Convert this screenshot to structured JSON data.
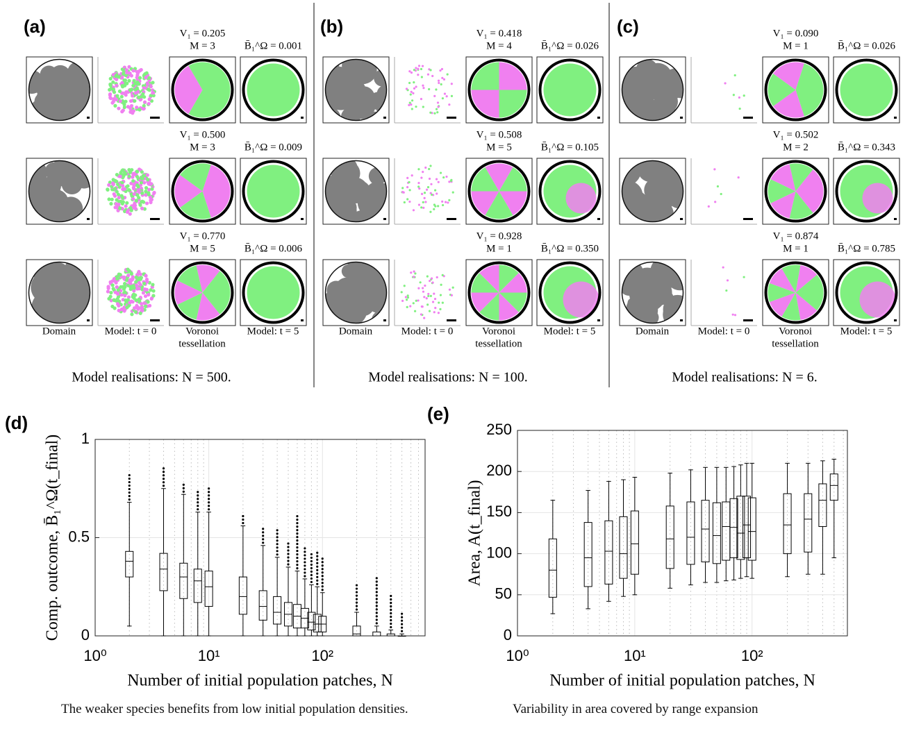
{
  "panels": [
    {
      "label": "(a)",
      "rows": [
        {
          "v": "V₁ = 0.205",
          "m": "M = 3",
          "b": "B̄₁^Ω = 0.001"
        },
        {
          "v": "V₁ = 0.500",
          "m": "M = 3",
          "b": "B̄₁^Ω = 0.009"
        },
        {
          "v": "V₁ = 0.770",
          "m": "M = 5",
          "b": "B̄₁^Ω = 0.006"
        }
      ],
      "captions": [
        "Domain",
        "Model: t = 0",
        "Voronoi",
        "tessellation",
        "Model: t = 5"
      ],
      "footer": "Model realisations: N = 500."
    },
    {
      "label": "(b)",
      "rows": [
        {
          "v": "V₁ = 0.418",
          "m": "M = 4",
          "b": "B̄₁^Ω = 0.026"
        },
        {
          "v": "V₁ = 0.508",
          "m": "M = 5",
          "b": "B̄₁^Ω = 0.105"
        },
        {
          "v": "V₁ = 0.928",
          "m": "M = 1",
          "b": "B̄₁^Ω = 0.350"
        }
      ],
      "captions": [
        "Domain",
        "Model: t = 0",
        "Voronoi",
        "tessellation",
        "Model: t = 5"
      ],
      "footer": "Model realisations: N = 100."
    },
    {
      "label": "(c)",
      "rows": [
        {
          "v": "V₁ = 0.090",
          "m": "M = 1",
          "b": "B̄₁^Ω = 0.026"
        },
        {
          "v": "V₁ = 0.502",
          "m": "M = 2",
          "b": "B̄₁^Ω = 0.343"
        },
        {
          "v": "V₁ = 0.874",
          "m": "M = 1",
          "b": "B̄₁^Ω = 0.785"
        }
      ],
      "captions": [
        "Domain",
        "Model: t = 0",
        "Voronoi",
        "tessellation",
        "Model: t = 5"
      ],
      "footer": "Model realisations: N = 6."
    }
  ],
  "chart_data": [
    {
      "type": "box",
      "panel_label": "(d)",
      "x_label": "Number of initial population patches, N",
      "y_label": "Comp. outcome, B̄₁^Ω(t_final)",
      "caption": "The weaker species benefits from low initial population densities.",
      "x": [
        2,
        4,
        6,
        8,
        10,
        20,
        30,
        40,
        50,
        60,
        70,
        80,
        90,
        100,
        200,
        300,
        400,
        500
      ],
      "whislo": [
        0.05,
        0,
        0,
        0,
        0,
        0,
        0,
        0,
        0,
        0,
        0,
        0,
        0,
        0,
        0,
        0,
        0,
        0
      ],
      "q1": [
        0.3,
        0.23,
        0.19,
        0.17,
        0.15,
        0.11,
        0.08,
        0.06,
        0.05,
        0.04,
        0.04,
        0.03,
        0.02,
        0.02,
        0,
        0,
        0,
        0
      ],
      "median": [
        0.38,
        0.34,
        0.3,
        0.28,
        0.25,
        0.2,
        0.15,
        0.12,
        0.11,
        0.1,
        0.09,
        0.07,
        0.06,
        0.06,
        0.01,
        0,
        0,
        0
      ],
      "q3": [
        0.43,
        0.42,
        0.37,
        0.34,
        0.33,
        0.3,
        0.23,
        0.2,
        0.17,
        0.16,
        0.14,
        0.12,
        0.11,
        0.1,
        0.05,
        0.02,
        0.01,
        0
      ],
      "whishi": [
        0.68,
        0.75,
        0.72,
        0.63,
        0.63,
        0.56,
        0.46,
        0.4,
        0.35,
        0.33,
        0.29,
        0.26,
        0.25,
        0.22,
        0.12,
        0.05,
        0.03,
        0.01
      ],
      "outlier_max": [
        0.82,
        0.87,
        0.78,
        0.74,
        0.76,
        0.62,
        0.56,
        0.54,
        0.48,
        0.62,
        0.46,
        0.42,
        0.43,
        0.41,
        0.26,
        0.31,
        0.22,
        0.12
      ],
      "xlim": [
        1,
        800
      ],
      "xticks": [
        {
          "value": 1,
          "label": "10⁰"
        },
        {
          "value": 10,
          "label": "10¹"
        },
        {
          "value": 100,
          "label": "10²"
        }
      ],
      "ylim": [
        0,
        1
      ],
      "yticks": [
        0,
        0.5,
        1
      ],
      "log_x": true,
      "grid": true
    },
    {
      "type": "box",
      "panel_label": "(e)",
      "x_label": "Number of initial population patches, N",
      "y_label": "Area, A(t_final)",
      "caption": "Variability in area covered by range expansion",
      "x": [
        2,
        4,
        6,
        8,
        10,
        20,
        30,
        40,
        50,
        60,
        70,
        80,
        90,
        100,
        200,
        300,
        400,
        500
      ],
      "whislo": [
        27,
        33,
        42,
        48,
        50,
        58,
        62,
        65,
        65,
        67,
        68,
        70,
        72,
        70,
        72,
        75,
        75,
        95
      ],
      "q1": [
        47,
        60,
        63,
        70,
        75,
        82,
        87,
        90,
        88,
        92,
        95,
        93,
        95,
        92,
        100,
        102,
        133,
        165
      ],
      "median": [
        80,
        95,
        103,
        100,
        112,
        118,
        120,
        130,
        122,
        133,
        132,
        125,
        135,
        127,
        135,
        142,
        165,
        183
      ],
      "q3": [
        118,
        138,
        140,
        145,
        152,
        158,
        163,
        165,
        162,
        163,
        167,
        170,
        170,
        168,
        173,
        173,
        185,
        197
      ],
      "whishi": [
        165,
        177,
        188,
        190,
        193,
        198,
        202,
        205,
        205,
        205,
        206,
        208,
        210,
        210,
        210,
        210,
        213,
        215
      ],
      "xlim": [
        1,
        650
      ],
      "xticks": [
        {
          "value": 1,
          "label": "10⁰"
        },
        {
          "value": 10,
          "label": "10¹"
        },
        {
          "value": 100,
          "label": "10²"
        }
      ],
      "ylim": [
        0,
        250
      ],
      "yticks": [
        0,
        50,
        100,
        150,
        200,
        250
      ],
      "log_x": true,
      "grid": true
    }
  ]
}
